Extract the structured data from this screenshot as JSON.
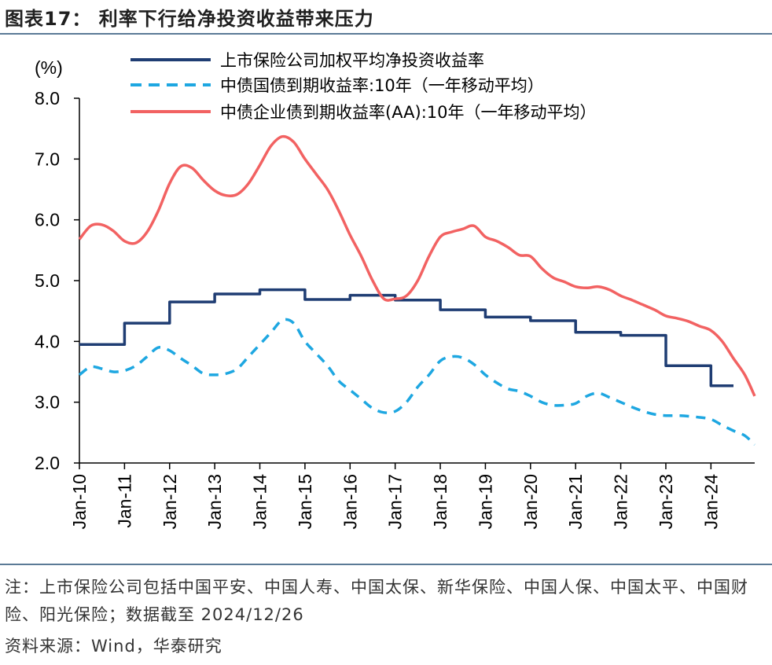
{
  "title": "图表17： 利率下行给净投资收益带来压力",
  "note": "注：上市保险公司包括中国平安、中国人寿、中国太保、新华保险、中国人保、中国太平、中国财险、阳光保险；数据截至 2024/12/26",
  "source": "资料来源：Wind，华泰研究",
  "colors": {
    "navy": "#1f3d73",
    "cyan": "#1ea7e1",
    "coral": "#f26262",
    "rule": "#5b7a96"
  },
  "chart_data": {
    "type": "line",
    "ylabel": "(%)",
    "ylim": [
      2.0,
      8.0
    ],
    "yticks": [
      "8.0",
      "7.0",
      "6.0",
      "5.0",
      "4.0",
      "3.0",
      "2.0"
    ],
    "xticks": [
      "Jan-10",
      "Jan-11",
      "Jan-12",
      "Jan-13",
      "Jan-14",
      "Jan-15",
      "Jan-16",
      "Jan-17",
      "Jan-18",
      "Jan-19",
      "Jan-20",
      "Jan-21",
      "Jan-22",
      "Jan-23",
      "Jan-24"
    ],
    "series": [
      {
        "name": "上市保险公司加权平均净投资收益率",
        "style": "step",
        "x": [
          2010.0,
          2011.0,
          2012.0,
          2013.0,
          2014.0,
          2015.0,
          2016.0,
          2017.0,
          2018.0,
          2019.0,
          2020.0,
          2021.0,
          2022.0,
          2023.0,
          2024.0,
          2024.5
        ],
        "values": [
          3.95,
          4.3,
          4.65,
          4.78,
          4.85,
          4.69,
          4.76,
          4.68,
          4.52,
          4.4,
          4.34,
          4.15,
          4.1,
          3.6,
          3.27,
          3.27
        ]
      },
      {
        "name": "中债国债到期收益率:10年（一年移动平均）",
        "style": "dashed",
        "x": [
          2010.0,
          2010.25,
          2010.5,
          2010.75,
          2011.0,
          2011.25,
          2011.5,
          2011.75,
          2012.0,
          2012.25,
          2012.5,
          2012.75,
          2013.0,
          2013.25,
          2013.5,
          2013.75,
          2014.0,
          2014.25,
          2014.5,
          2014.75,
          2015.0,
          2015.25,
          2015.5,
          2015.75,
          2016.0,
          2016.25,
          2016.5,
          2016.75,
          2017.0,
          2017.25,
          2017.5,
          2017.75,
          2018.0,
          2018.25,
          2018.5,
          2018.75,
          2019.0,
          2019.25,
          2019.5,
          2019.75,
          2020.0,
          2020.25,
          2020.5,
          2020.75,
          2021.0,
          2021.25,
          2021.5,
          2021.75,
          2022.0,
          2022.25,
          2022.5,
          2022.75,
          2023.0,
          2023.25,
          2023.5,
          2023.75,
          2024.0,
          2024.25,
          2024.5,
          2024.75,
          2024.97
        ],
        "values": [
          3.45,
          3.58,
          3.55,
          3.5,
          3.52,
          3.6,
          3.75,
          3.9,
          3.85,
          3.72,
          3.6,
          3.47,
          3.45,
          3.47,
          3.55,
          3.75,
          3.95,
          4.15,
          4.35,
          4.3,
          4.0,
          3.8,
          3.6,
          3.35,
          3.2,
          3.05,
          2.9,
          2.83,
          2.85,
          3.0,
          3.25,
          3.45,
          3.68,
          3.75,
          3.73,
          3.62,
          3.45,
          3.32,
          3.22,
          3.18,
          3.1,
          3.0,
          2.95,
          2.95,
          2.98,
          3.1,
          3.15,
          3.08,
          3.0,
          2.92,
          2.85,
          2.8,
          2.78,
          2.78,
          2.77,
          2.75,
          2.72,
          2.62,
          2.53,
          2.45,
          2.3
        ]
      },
      {
        "name": "中债企业债到期收益率(AA):10年（一年移动平均）",
        "style": "solid",
        "x": [
          2010.0,
          2010.25,
          2010.5,
          2010.75,
          2011.0,
          2011.25,
          2011.5,
          2011.75,
          2012.0,
          2012.25,
          2012.5,
          2012.75,
          2013.0,
          2013.25,
          2013.5,
          2013.75,
          2014.0,
          2014.25,
          2014.5,
          2014.75,
          2015.0,
          2015.25,
          2015.5,
          2015.75,
          2016.0,
          2016.25,
          2016.5,
          2016.75,
          2017.0,
          2017.25,
          2017.5,
          2017.75,
          2018.0,
          2018.25,
          2018.5,
          2018.75,
          2019.0,
          2019.25,
          2019.5,
          2019.75,
          2020.0,
          2020.25,
          2020.5,
          2020.75,
          2021.0,
          2021.25,
          2021.5,
          2021.75,
          2022.0,
          2022.25,
          2022.5,
          2022.75,
          2023.0,
          2023.25,
          2023.5,
          2023.75,
          2024.0,
          2024.25,
          2024.5,
          2024.75,
          2024.97
        ],
        "values": [
          5.68,
          5.9,
          5.92,
          5.82,
          5.65,
          5.62,
          5.8,
          6.15,
          6.6,
          6.88,
          6.85,
          6.65,
          6.48,
          6.4,
          6.42,
          6.6,
          6.9,
          7.22,
          7.37,
          7.28,
          7.0,
          6.75,
          6.5,
          6.15,
          5.75,
          5.4,
          5.0,
          4.7,
          4.7,
          4.75,
          5.0,
          5.4,
          5.72,
          5.8,
          5.85,
          5.9,
          5.72,
          5.65,
          5.55,
          5.42,
          5.4,
          5.2,
          5.05,
          4.98,
          4.9,
          4.88,
          4.9,
          4.85,
          4.75,
          4.68,
          4.6,
          4.52,
          4.42,
          4.38,
          4.33,
          4.25,
          4.18,
          4.0,
          3.72,
          3.45,
          3.1
        ]
      }
    ]
  }
}
